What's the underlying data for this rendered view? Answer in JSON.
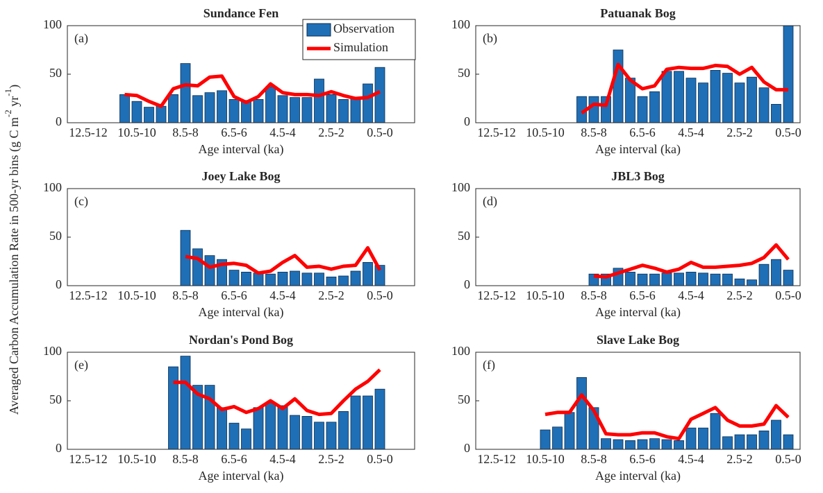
{
  "ylabel": {
    "text": "Averaged Carbon Accumulation Rate in 500-yr bins (g C m",
    "sup1": "-2",
    "mid": " yr",
    "sup2": "-1",
    "end": ")"
  },
  "chart_data": [
    {
      "type": "bar",
      "title": "Sundance Fen",
      "panel_label": "(a)",
      "xlabel": "Age interval (ka)",
      "legend": "upper right",
      "categories": [
        "12.5-12",
        null,
        null,
        null,
        "10.5-10",
        null,
        null,
        null,
        "8.5-8",
        null,
        null,
        null,
        "6.5-6",
        null,
        null,
        null,
        "4.5-4",
        null,
        null,
        null,
        "2.5-2",
        null,
        null,
        null,
        "0.5-0"
      ],
      "ylim": [
        0,
        100
      ],
      "yticks": [
        0,
        50,
        100
      ],
      "series": [
        {
          "name": "Observation",
          "type": "bar",
          "color": "#1f6fb6",
          "values": [
            null,
            null,
            null,
            29,
            22,
            16,
            17,
            29,
            61,
            28,
            31,
            33,
            24,
            23,
            24,
            37,
            28,
            26,
            26,
            45,
            29,
            24,
            26,
            40,
            57
          ]
        },
        {
          "name": "Simulation",
          "type": "line",
          "color": "#ff0000",
          "values": [
            null,
            null,
            null,
            29,
            28,
            22,
            17,
            35,
            39,
            38,
            47,
            48,
            27,
            21,
            27,
            40,
            31,
            29,
            29,
            28,
            32,
            28,
            25,
            26,
            32
          ]
        }
      ]
    },
    {
      "type": "bar",
      "title": "Patuanak Bog",
      "panel_label": "(b)",
      "xlabel": "Age interval (ka)",
      "categories": [
        "12.5-12",
        null,
        null,
        null,
        "10.5-10",
        null,
        null,
        null,
        "8.5-8",
        null,
        null,
        null,
        "6.5-6",
        null,
        null,
        null,
        "4.5-4",
        null,
        null,
        null,
        "2.5-2",
        null,
        null,
        null,
        "0.5-0"
      ],
      "ylim": [
        0,
        100
      ],
      "yticks": [
        0,
        50,
        100
      ],
      "series": [
        {
          "name": "Observation",
          "type": "bar",
          "color": "#1f6fb6",
          "values": [
            null,
            null,
            null,
            null,
            null,
            null,
            null,
            27,
            27,
            27,
            75,
            46,
            27,
            32,
            53,
            53,
            46,
            41,
            54,
            51,
            41,
            47,
            36,
            19,
            100
          ]
        },
        {
          "name": "Simulation",
          "type": "line",
          "color": "#ff0000",
          "values": [
            null,
            null,
            null,
            null,
            null,
            null,
            null,
            10,
            19,
            18,
            60,
            44,
            35,
            38,
            55,
            57,
            56,
            56,
            59,
            58,
            50,
            57,
            42,
            34,
            34
          ]
        }
      ]
    },
    {
      "type": "bar",
      "title": "Joey Lake Bog",
      "panel_label": "(c)",
      "xlabel": "Age interval (ka)",
      "categories": [
        "12.5-12",
        null,
        null,
        null,
        "10.5-10",
        null,
        null,
        null,
        "8.5-8",
        null,
        null,
        null,
        "6.5-6",
        null,
        null,
        null,
        "4.5-4",
        null,
        null,
        null,
        "2.5-2",
        null,
        null,
        null,
        "0.5-0"
      ],
      "ylim": [
        0,
        100
      ],
      "yticks": [
        0,
        50,
        100
      ],
      "series": [
        {
          "name": "Observation",
          "type": "bar",
          "color": "#1f6fb6",
          "values": [
            null,
            null,
            null,
            null,
            null,
            null,
            null,
            null,
            57,
            38,
            31,
            27,
            16,
            14,
            13,
            12,
            14,
            15,
            13,
            13,
            9,
            10,
            15,
            24,
            21
          ]
        },
        {
          "name": "Simulation",
          "type": "line",
          "color": "#ff0000",
          "values": [
            null,
            null,
            null,
            null,
            null,
            null,
            null,
            null,
            30,
            28,
            19,
            22,
            23,
            21,
            13,
            15,
            24,
            31,
            19,
            20,
            17,
            20,
            21,
            39,
            16
          ]
        }
      ]
    },
    {
      "type": "bar",
      "title": "JBL3 Bog",
      "panel_label": "(d)",
      "xlabel": "Age interval (ka)",
      "categories": [
        "12.5-12",
        null,
        null,
        null,
        "10.5-10",
        null,
        null,
        null,
        "8.5-8",
        null,
        null,
        null,
        "6.5-6",
        null,
        null,
        null,
        "4.5-4",
        null,
        null,
        null,
        "2.5-2",
        null,
        null,
        null,
        "0.5-0"
      ],
      "ylim": [
        0,
        100
      ],
      "yticks": [
        0,
        50,
        100
      ],
      "series": [
        {
          "name": "Observation",
          "type": "bar",
          "color": "#1f6fb6",
          "values": [
            null,
            null,
            null,
            null,
            null,
            null,
            null,
            null,
            12,
            12,
            18,
            14,
            12,
            12,
            13,
            13,
            14,
            13,
            12,
            12,
            7,
            6,
            22,
            27,
            16
          ]
        },
        {
          "name": "Simulation",
          "type": "line",
          "color": "#ff0000",
          "values": [
            null,
            null,
            null,
            null,
            null,
            null,
            null,
            null,
            10,
            9,
            13,
            17,
            21,
            18,
            14,
            17,
            24,
            19,
            19,
            20,
            21,
            23,
            29,
            42,
            27
          ]
        }
      ]
    },
    {
      "type": "bar",
      "title": "Nordan's Pond Bog",
      "panel_label": "(e)",
      "xlabel": "Age interval (ka)",
      "categories": [
        "12.5-12",
        null,
        null,
        null,
        "10.5-10",
        null,
        null,
        null,
        "8.5-8",
        null,
        null,
        null,
        "6.5-6",
        null,
        null,
        null,
        "4.5-4",
        null,
        null,
        null,
        "2.5-2",
        null,
        null,
        null,
        "0.5-0"
      ],
      "ylim": [
        0,
        100
      ],
      "yticks": [
        0,
        50,
        100
      ],
      "series": [
        {
          "name": "Observation",
          "type": "bar",
          "color": "#1f6fb6",
          "values": [
            null,
            null,
            null,
            null,
            null,
            null,
            null,
            85,
            96,
            66,
            66,
            43,
            27,
            21,
            43,
            48,
            45,
            35,
            34,
            28,
            28,
            39,
            55,
            55,
            62
          ]
        },
        {
          "name": "Simulation",
          "type": "line",
          "color": "#ff0000",
          "values": [
            null,
            null,
            null,
            null,
            null,
            null,
            null,
            69,
            69,
            57,
            52,
            41,
            44,
            38,
            42,
            50,
            42,
            52,
            40,
            36,
            37,
            50,
            62,
            70,
            82
          ]
        }
      ]
    },
    {
      "type": "bar",
      "title": "Slave Lake Bog",
      "panel_label": "(f)",
      "xlabel": "Age interval (ka)",
      "categories": [
        "12.5-12",
        null,
        null,
        null,
        "10.5-10",
        null,
        null,
        null,
        "8.5-8",
        null,
        null,
        null,
        "6.5-6",
        null,
        null,
        null,
        "4.5-4",
        null,
        null,
        null,
        "2.5-2",
        null,
        null,
        null,
        "0.5-0"
      ],
      "ylim": [
        0,
        100
      ],
      "yticks": [
        0,
        50,
        100
      ],
      "series": [
        {
          "name": "Observation",
          "type": "bar",
          "color": "#1f6fb6",
          "values": [
            null,
            null,
            null,
            null,
            20,
            23,
            38,
            74,
            43,
            11,
            10,
            9,
            10,
            11,
            10,
            9,
            22,
            22,
            37,
            13,
            15,
            15,
            19,
            30,
            15
          ]
        },
        {
          "name": "Simulation",
          "type": "line",
          "color": "#ff0000",
          "values": [
            null,
            null,
            null,
            null,
            36,
            38,
            38,
            56,
            40,
            16,
            15,
            15,
            17,
            17,
            13,
            11,
            31,
            37,
            43,
            30,
            24,
            24,
            26,
            45,
            33
          ]
        }
      ]
    }
  ]
}
